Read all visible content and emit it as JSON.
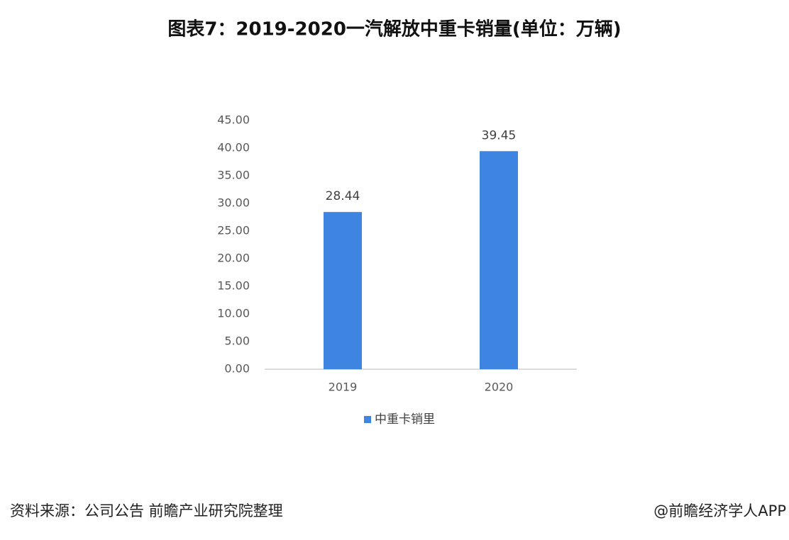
{
  "chart_data": {
    "type": "bar",
    "title": "图表7：2019-2020一汽解放中重卡销量(单位：万辆)",
    "categories": [
      "2019",
      "2020"
    ],
    "series": [
      {
        "name": "中重卡销里",
        "color": "#3d85e0",
        "values": [
          28.44,
          39.45
        ]
      }
    ],
    "ylim": [
      0,
      45
    ],
    "yticks": [
      {
        "value": 0,
        "label": "0.00"
      },
      {
        "value": 5,
        "label": "5.00"
      },
      {
        "value": 10,
        "label": "10.00"
      },
      {
        "value": 15,
        "label": "15.00"
      },
      {
        "value": 20,
        "label": "20.00"
      },
      {
        "value": 25,
        "label": "25.00"
      },
      {
        "value": 30,
        "label": "30.00"
      },
      {
        "value": 35,
        "label": "35.00"
      },
      {
        "value": 40,
        "label": "40.00"
      },
      {
        "value": 45,
        "label": "45.00"
      }
    ],
    "grid": false,
    "legend": "bottom",
    "source": "资料来源：公司公告 前瞻产业研究院整理",
    "credit": "@前瞻经济学人APP"
  }
}
